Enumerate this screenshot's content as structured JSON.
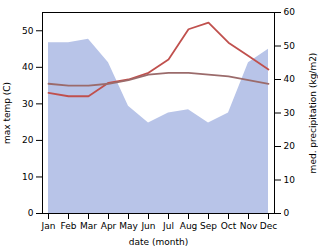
{
  "chart_data": {
    "type": "line",
    "xlabel": "date (month)",
    "ylabel": "max temp (C)",
    "y2label": "med. precipitation (kg/m2)",
    "categories": [
      "Jan",
      "Feb",
      "Mar",
      "Apr",
      "May",
      "Jun",
      "Jul",
      "Aug",
      "Sep",
      "Oct",
      "Nov",
      "Dec"
    ],
    "series": [
      {
        "type": "area",
        "color": "#b8c4e8",
        "axis": "y2",
        "values": [
          51,
          51,
          52,
          45,
          32,
          27,
          30,
          31,
          27,
          30,
          45,
          49
        ]
      },
      {
        "type": "line",
        "color": "#c0504d",
        "axis": "y2",
        "values": [
          36,
          35,
          35,
          39,
          40,
          42,
          46,
          55,
          57,
          51,
          47,
          43
        ]
      },
      {
        "type": "line",
        "color": "#9b6b6b",
        "values": [
          35.5,
          35.0,
          35.0,
          35.5,
          36.5,
          38.0,
          38.5,
          38.5,
          38.0,
          37.5,
          36.5,
          35.5
        ]
      }
    ],
    "ylim": [
      0,
      55
    ],
    "yticks": [
      0,
      10,
      20,
      30,
      40,
      50
    ],
    "y2lim": [
      0,
      60
    ],
    "y2ticks": [
      0,
      10,
      20,
      30,
      40,
      50,
      60
    ]
  }
}
